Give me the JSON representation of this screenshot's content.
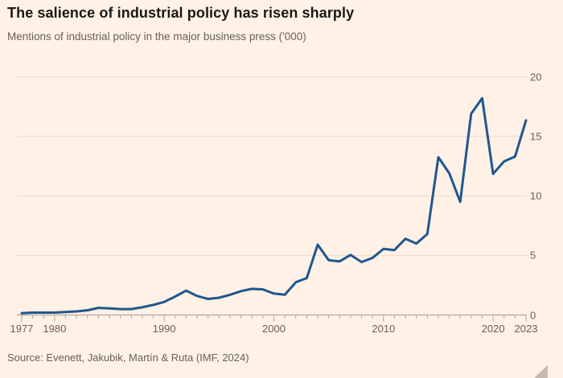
{
  "header": {
    "title": "The salience of industrial policy has risen sharply",
    "subtitle": "Mentions of industrial policy in the major business press ('000)"
  },
  "footer": {
    "source": "Source: Evenett, Jakubik, Martín & Ruta (IMF, 2024)"
  },
  "icons": {
    "resize_handle": "corner-triangle"
  },
  "colors": {
    "background": "#fff1e5",
    "title": "#1a1817",
    "muted": "#66605c",
    "line": "#1f578f",
    "gridline": "#e9dac9",
    "axis": "#b3a797",
    "handle": "#b9b1a5"
  },
  "chart_data": {
    "type": "line",
    "title": "The salience of industrial policy has risen sharply",
    "subtitle": "Mentions of industrial policy in the major business press ('000)",
    "xlabel": "",
    "ylabel": "Mentions ('000)",
    "x": [
      1977,
      1978,
      1979,
      1980,
      1981,
      1982,
      1983,
      1984,
      1985,
      1986,
      1987,
      1988,
      1989,
      1990,
      1991,
      1992,
      1993,
      1994,
      1995,
      1996,
      1997,
      1998,
      1999,
      2000,
      2001,
      2002,
      2003,
      2004,
      2005,
      2006,
      2007,
      2008,
      2009,
      2010,
      2011,
      2012,
      2013,
      2014,
      2015,
      2016,
      2017,
      2018,
      2019,
      2020,
      2021,
      2022,
      2023
    ],
    "series": [
      {
        "name": "Mentions of industrial policy ('000)",
        "values": [
          0.15,
          0.2,
          0.2,
          0.2,
          0.25,
          0.3,
          0.4,
          0.6,
          0.55,
          0.5,
          0.5,
          0.65,
          0.85,
          1.1,
          1.55,
          2.05,
          1.6,
          1.35,
          1.45,
          1.7,
          2.0,
          2.2,
          2.15,
          1.8,
          1.7,
          2.75,
          3.1,
          5.9,
          4.6,
          4.5,
          5.05,
          4.45,
          4.8,
          5.55,
          5.45,
          6.4,
          6.0,
          6.8,
          13.25,
          11.9,
          9.5,
          16.9,
          18.2,
          11.85,
          12.9,
          13.3,
          16.35
        ]
      }
    ],
    "xlim": [
      1977,
      2023
    ],
    "ylim": [
      0,
      20
    ],
    "yticks": [
      0,
      5,
      10,
      15,
      20
    ],
    "xticks_labeled": [
      1977,
      1980,
      1990,
      2000,
      2010,
      2020,
      2023
    ],
    "grid": "horizontal",
    "legend": "none",
    "y_axis_side": "right"
  }
}
